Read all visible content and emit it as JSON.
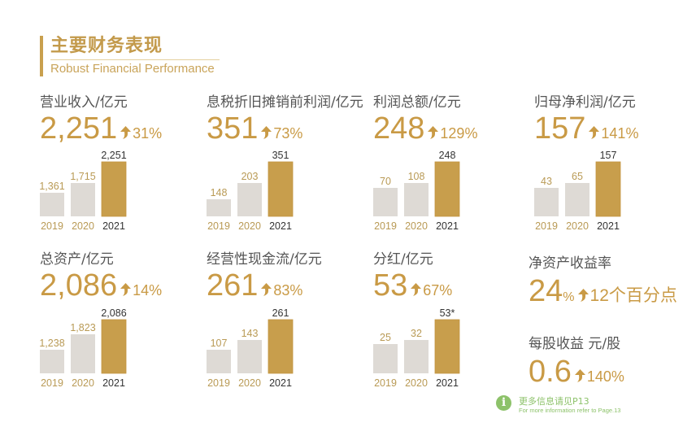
{
  "header": {
    "title_cn": "主要财务表现",
    "title_en": "Robust Financial Performance"
  },
  "colors": {
    "accent": "#C99A45",
    "bar_current": "#C89E4C",
    "bar_prior": "#DEDAD5",
    "prior_label": "#B99A55",
    "current_label": "#333333",
    "label_text": "#555555",
    "info_green": "#8DC26A"
  },
  "chart_data": [
    {
      "type": "bar",
      "title": "营业收入/亿元",
      "headline": "2,251",
      "change": "31%",
      "categories": [
        "2019",
        "2020",
        "2021"
      ],
      "values": [
        1361,
        1715,
        2251
      ],
      "value_labels": [
        "1,361",
        "1,715",
        "2,251"
      ]
    },
    {
      "type": "bar",
      "title": "息税折旧摊销前利润/亿元",
      "headline": "351",
      "change": "73%",
      "categories": [
        "2019",
        "2020",
        "2021"
      ],
      "values": [
        148,
        203,
        351
      ],
      "value_labels": [
        "148",
        "203",
        "351"
      ]
    },
    {
      "type": "bar",
      "title": "利润总额/亿元",
      "headline": "248",
      "change": "129%",
      "categories": [
        "2019",
        "2020",
        "2021"
      ],
      "values": [
        70,
        108,
        248
      ],
      "value_labels": [
        "70",
        "108",
        "248"
      ]
    },
    {
      "type": "bar",
      "title": "归母净利润/亿元",
      "headline": "157",
      "change": "141%",
      "categories": [
        "2019",
        "2020",
        "2021"
      ],
      "values": [
        43,
        65,
        157
      ],
      "value_labels": [
        "43",
        "65",
        "157"
      ]
    },
    {
      "type": "bar",
      "title": "总资产/亿元",
      "headline": "2,086",
      "change": "14%",
      "categories": [
        "2019",
        "2020",
        "2021"
      ],
      "values": [
        1238,
        1823,
        2086
      ],
      "value_labels": [
        "1,238",
        "1,823",
        "2,086"
      ]
    },
    {
      "type": "bar",
      "title": "经营性现金流/亿元",
      "headline": "261",
      "change": "83%",
      "categories": [
        "2019",
        "2020",
        "2021"
      ],
      "values": [
        107,
        143,
        261
      ],
      "value_labels": [
        "107",
        "143",
        "261"
      ]
    },
    {
      "type": "bar",
      "title": "分红/亿元",
      "headline": "53",
      "change": "67%",
      "categories": [
        "2019",
        "2020",
        "2021"
      ],
      "values": [
        25,
        32,
        53
      ],
      "value_labels": [
        "25",
        "32",
        "53*"
      ]
    }
  ],
  "kpis": [
    {
      "label": "净资产收益率",
      "value": "24",
      "unit": "%",
      "change": "12个百分点"
    },
    {
      "label": "每股收益 元/股",
      "value": "0.6",
      "unit": "",
      "change": "140%"
    }
  ],
  "footer": {
    "icon": "info-icon",
    "icon_glyph": "i",
    "text_cn": "更多信息请见P13",
    "text_en": "For more information refer to Page.13"
  }
}
